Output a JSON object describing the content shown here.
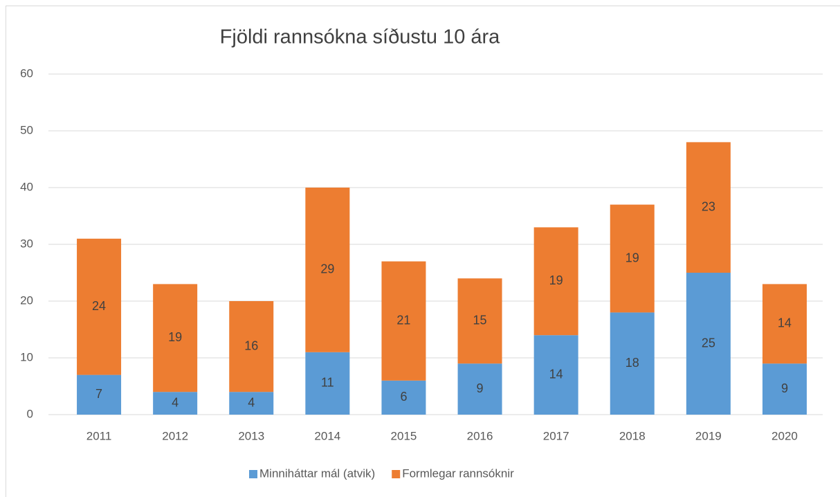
{
  "chart_data": {
    "type": "stacked_bar",
    "title": "Fjöldi rannsókna síðustu 10 ára",
    "categories": [
      "2011",
      "2012",
      "2013",
      "2014",
      "2015",
      "2016",
      "2017",
      "2018",
      "2019",
      "2020"
    ],
    "series": [
      {
        "name": "Minniháttar mál (atvik)",
        "color": "#5b9bd5",
        "values": [
          7,
          4,
          4,
          11,
          6,
          9,
          14,
          18,
          25,
          9
        ]
      },
      {
        "name": "Formlegar rannsóknir",
        "color": "#ed7d31",
        "values": [
          24,
          19,
          16,
          29,
          21,
          15,
          19,
          19,
          23,
          14
        ]
      }
    ],
    "ylim": [
      0,
      60
    ],
    "yticks": [
      0,
      10,
      20,
      30,
      40,
      50,
      60
    ],
    "grid": true,
    "legend": "bottom"
  }
}
